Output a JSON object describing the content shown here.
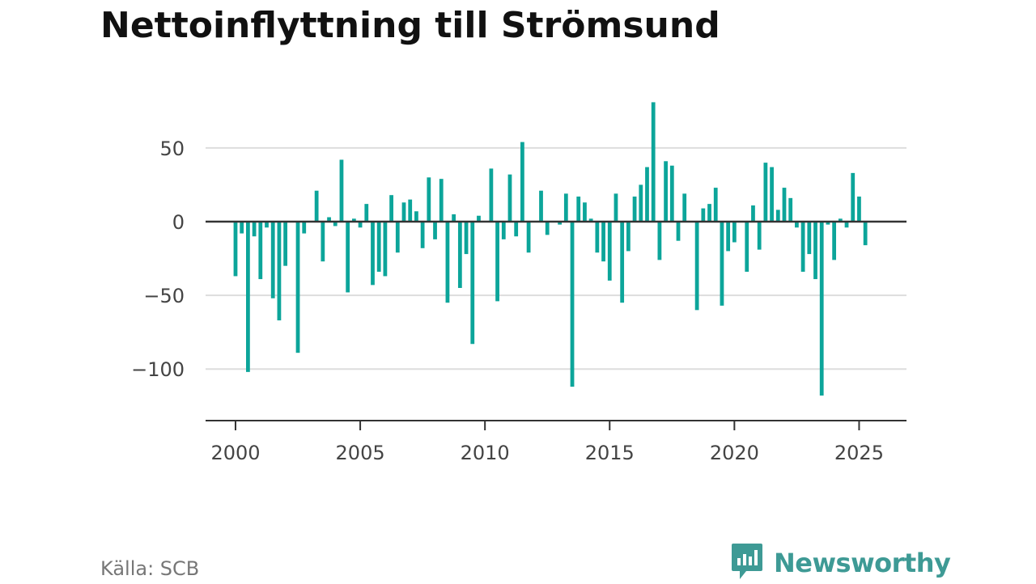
{
  "title": "Nettoinflyttning till Strömsund",
  "source": "Källa: SCB",
  "brand": {
    "name": "Newsworthy",
    "icon": "newsworthy-logo-icon",
    "color": "#3e9a95"
  },
  "colors": {
    "bar": "#0ca59a",
    "zero_line": "#333333",
    "grid": "#dddddd",
    "text": "#444444"
  },
  "chart_data": {
    "type": "bar",
    "title": "Nettoinflyttning till Strömsund",
    "xlabel": "",
    "ylabel": "",
    "xlim": [
      1998.8,
      2026.9
    ],
    "ylim": [
      -135,
      90
    ],
    "yticks": [
      50,
      0,
      -50,
      -100
    ],
    "ytick_labels": [
      "50",
      "0",
      "−50",
      "−100"
    ],
    "xticks": [
      2000,
      2005,
      2010,
      2015,
      2020,
      2025
    ],
    "xtick_labels": [
      "2000",
      "2005",
      "2010",
      "2015",
      "2020",
      "2025"
    ],
    "grid": true,
    "series": [
      {
        "x": [
          2000.0,
          2000.25,
          2000.5,
          2000.75,
          2001.0,
          2001.25,
          2001.5,
          2001.75,
          2002.0,
          2002.25,
          2002.5,
          2002.75,
          2003.0,
          2003.25,
          2003.5,
          2003.75,
          2004.0,
          2004.25,
          2004.5,
          2004.75,
          2005.0,
          2005.25,
          2005.5,
          2005.75,
          2006.0,
          2006.25,
          2006.5,
          2006.75,
          2007.0,
          2007.25,
          2007.5,
          2007.75,
          2008.0,
          2008.25,
          2008.5,
          2008.75,
          2009.0,
          2009.25,
          2009.5,
          2009.75,
          2010.0,
          2010.25,
          2010.5,
          2010.75,
          2011.0,
          2011.25,
          2011.5,
          2011.75,
          2012.0,
          2012.25,
          2012.5,
          2012.75,
          2013.0,
          2013.25,
          2013.5,
          2013.75,
          2014.0,
          2014.25,
          2014.5,
          2014.75,
          2015.0,
          2015.25,
          2015.5,
          2015.75,
          2016.0,
          2016.25,
          2016.5,
          2016.75,
          2017.0,
          2017.25,
          2017.5,
          2017.75,
          2018.0,
          2018.25,
          2018.5,
          2018.75,
          2019.0,
          2019.25,
          2019.5,
          2019.75,
          2020.0,
          2020.25,
          2020.5,
          2020.75,
          2021.0,
          2021.25,
          2021.5,
          2021.75,
          2022.0,
          2022.25,
          2022.5,
          2022.75,
          2023.0,
          2023.25,
          2023.5,
          2023.75,
          2024.0,
          2024.25,
          2024.5,
          2024.75,
          2025.0,
          2025.25
        ],
        "values": [
          -37,
          -8,
          -102,
          -10,
          -39,
          -4,
          -52,
          -67,
          -30,
          0,
          -89,
          -8,
          0,
          21,
          -27,
          3,
          -3,
          42,
          -48,
          2,
          -4,
          12,
          -43,
          -34,
          -37,
          18,
          -21,
          13,
          15,
          7,
          -18,
          30,
          -12,
          29,
          -55,
          5,
          -45,
          -22,
          -83,
          4,
          0,
          36,
          -54,
          -12,
          32,
          -10,
          54,
          -21,
          0,
          21,
          -9,
          0,
          -2,
          19,
          -112,
          17,
          13,
          2,
          -21,
          -27,
          -40,
          19,
          -55,
          -20,
          17,
          25,
          37,
          81,
          -26,
          41,
          38,
          -13,
          19,
          0,
          -60,
          9,
          12,
          23,
          -57,
          -20,
          -14,
          0,
          -34,
          11,
          -19,
          40,
          37,
          8,
          23,
          16,
          -4,
          -34,
          -22,
          -39,
          -118,
          -2,
          -26,
          2,
          -4,
          33,
          17,
          -16
        ]
      }
    ]
  }
}
